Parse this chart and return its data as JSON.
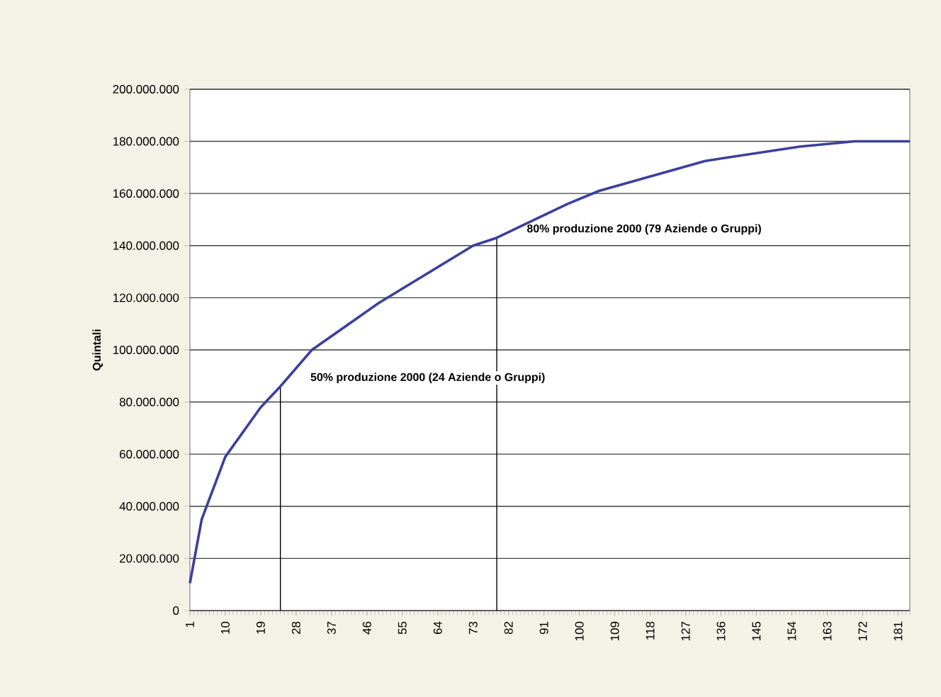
{
  "chart_data": {
    "type": "line",
    "ylabel": "Quintali",
    "x": [
      1,
      4,
      10,
      19,
      24,
      32,
      49,
      61,
      73,
      79,
      97,
      105,
      132,
      156,
      170,
      184
    ],
    "series": [
      {
        "color": "#3c3f9e",
        "values": [
          10500000,
          35000000,
          59000000,
          78000000,
          86000000,
          100000000,
          118000000,
          129000000,
          140000000,
          143000000,
          156000000,
          161000000,
          172500000,
          178000000,
          180000000,
          180000000
        ]
      }
    ],
    "xlim": [
      1,
      184
    ],
    "ylim": [
      0,
      200000000
    ],
    "xticks": [
      1,
      10,
      19,
      28,
      37,
      46,
      55,
      64,
      73,
      82,
      91,
      100,
      109,
      118,
      127,
      136,
      145,
      154,
      163,
      172,
      181
    ],
    "yticks": [
      0,
      {
        "value": 20000000,
        "label": "20.000.000"
      },
      {
        "value": 40000000,
        "label": "40.000.000"
      },
      {
        "value": 60000000,
        "label": "60.000.000"
      },
      {
        "value": 80000000,
        "label": "80.000.000"
      },
      {
        "value": 100000000,
        "label": "100.000.000"
      },
      {
        "value": 120000000,
        "label": "120.000.000"
      },
      {
        "value": 140000000,
        "label": "140.000.000"
      },
      {
        "value": 160000000,
        "label": "160.000.000"
      },
      {
        "value": 180000000,
        "label": "180.000.000"
      },
      {
        "value": 200000000,
        "label": "200.000.000"
      }
    ],
    "grid": "y",
    "line_style": "solid",
    "ref_lines": [
      {
        "axis": "x",
        "value": 24,
        "label": "50% produzione 2000 (24 Aziende o Gruppi)"
      },
      {
        "axis": "x",
        "value": 79,
        "label": "80% produzione 2000 (79 Aziende o Gruppi)"
      }
    ]
  }
}
